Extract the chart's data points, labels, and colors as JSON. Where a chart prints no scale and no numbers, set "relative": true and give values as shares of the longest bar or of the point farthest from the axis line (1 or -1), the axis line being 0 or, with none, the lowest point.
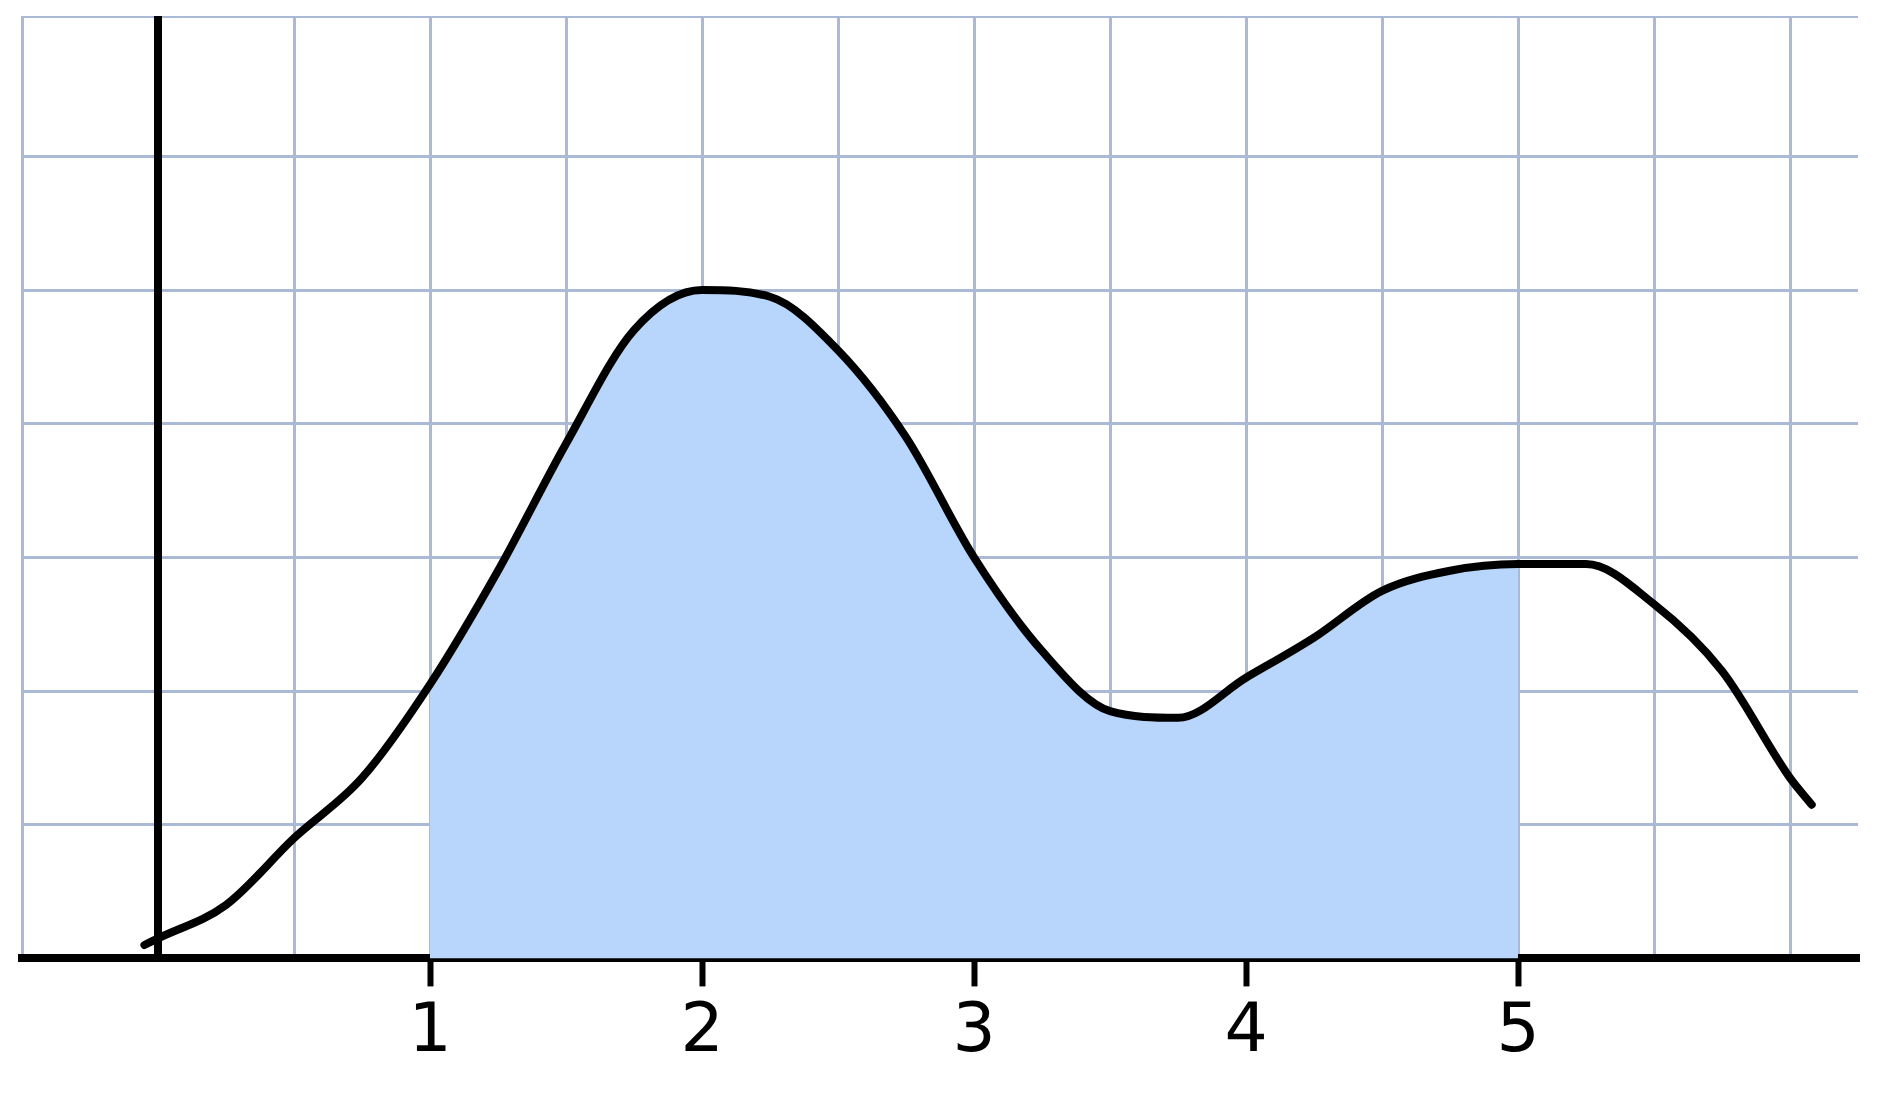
{
  "chart_data": {
    "type": "line",
    "relative": true,
    "grid": true,
    "xlim": [
      -0.5,
      6.25
    ],
    "xticks": [
      {
        "value": -0.5,
        "label": null
      },
      {
        "value": 0,
        "label": null
      },
      {
        "value": 0.5,
        "label": null
      },
      1,
      {
        "value": 1.5,
        "label": null
      },
      2,
      {
        "value": 2.5,
        "label": null
      },
      3,
      {
        "value": 3.5,
        "label": null
      },
      4,
      {
        "value": 4.5,
        "label": null
      },
      5,
      {
        "value": 5.5,
        "label": null
      },
      {
        "value": 6,
        "label": null
      }
    ],
    "series": [
      {
        "type": "area",
        "color": "#b8d6fb",
        "x": [
          1,
          1.25,
          1.5,
          1.75,
          2,
          2.25,
          2.5,
          2.75,
          3,
          3.25,
          3.5,
          3.75,
          4,
          4.25,
          4.5,
          4.75,
          5
        ],
        "values": [
          0.41,
          0.58,
          0.77,
          0.94,
          1.0,
          0.99,
          0.91,
          0.78,
          0.6,
          0.46,
          0.37,
          0.36,
          0.42,
          0.48,
          0.55,
          0.58,
          0.59
        ]
      },
      {
        "type": "line",
        "color": "#000000",
        "x": [
          -0.05,
          0,
          0.25,
          0.5,
          0.75,
          1,
          1.25,
          1.5,
          1.75,
          2,
          2.25,
          2.5,
          2.75,
          3,
          3.25,
          3.5,
          3.75,
          4,
          4.25,
          4.5,
          4.75,
          5,
          5.25,
          5.5,
          5.75,
          6,
          6.08
        ],
        "values": [
          0.02,
          0.03,
          0.08,
          0.18,
          0.27,
          0.41,
          0.58,
          0.77,
          0.94,
          1.0,
          0.99,
          0.91,
          0.78,
          0.6,
          0.46,
          0.37,
          0.36,
          0.42,
          0.48,
          0.55,
          0.58,
          0.59,
          0.59,
          0.53,
          0.43,
          0.27,
          0.23
        ]
      }
    ]
  }
}
